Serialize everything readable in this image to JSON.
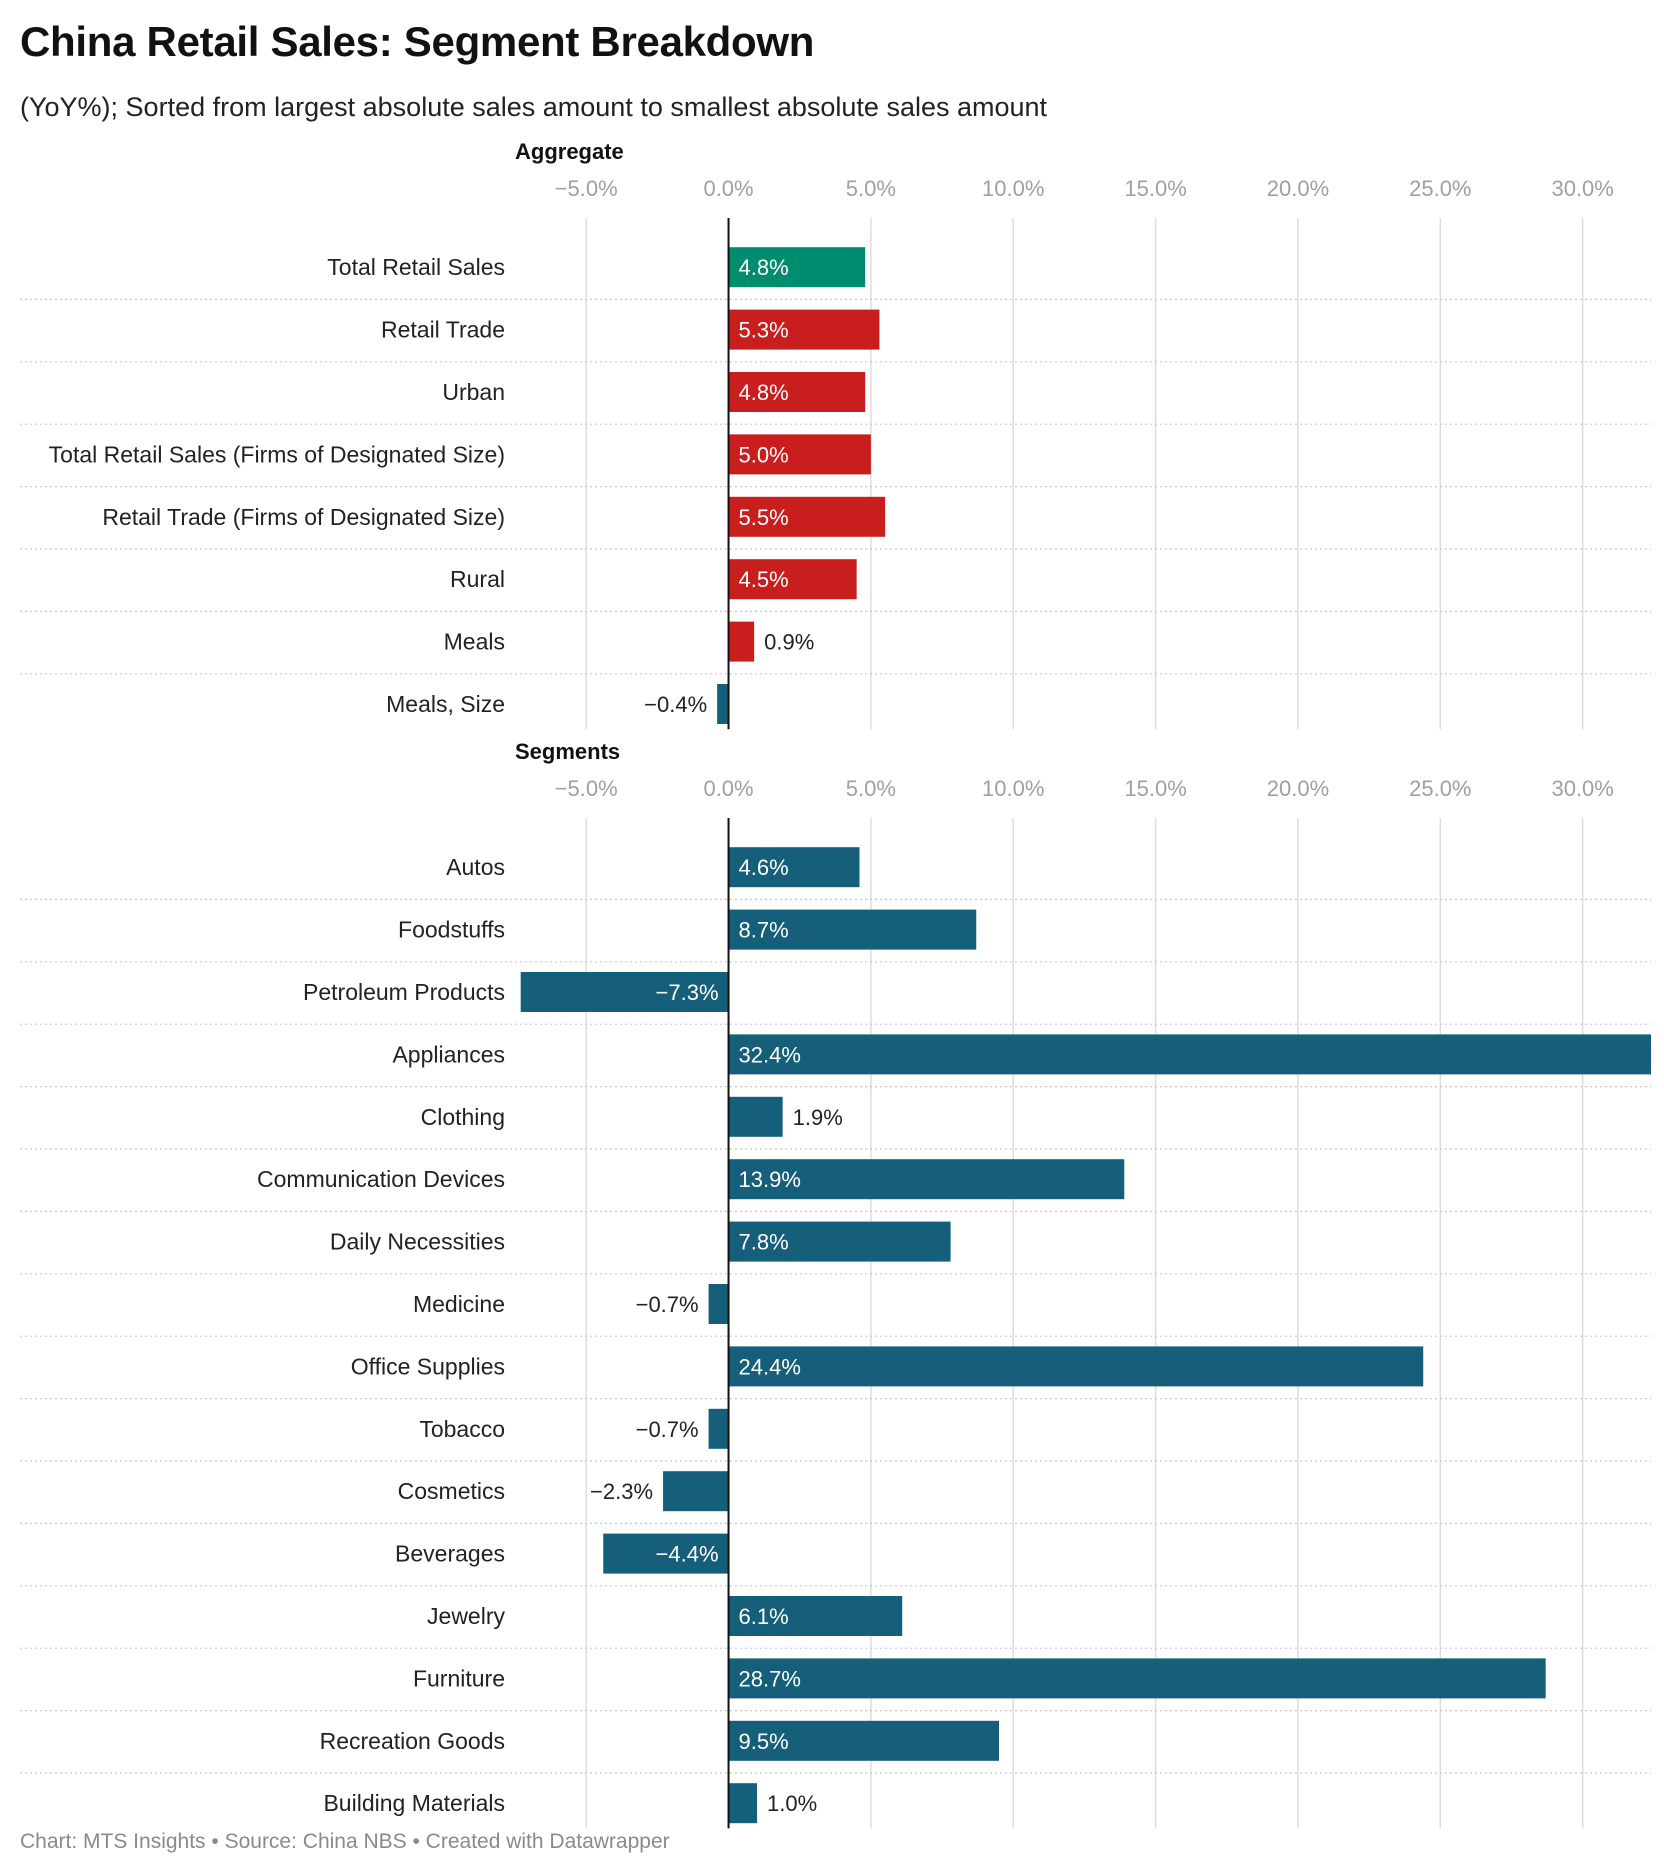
{
  "header": {
    "title": "China Retail Sales: Segment Breakdown",
    "subtitle": "(YoY%); Sorted from largest absolute sales amount to smallest absolute sales amount"
  },
  "footer": {
    "credit": "Chart: MTS Insights • Source: China NBS • Created with Datawrapper"
  },
  "colors": {
    "highlight": "#008c6f",
    "aggregate": "#c81e1e",
    "segment": "#155f7a",
    "grid": "#dddddd",
    "axis": "#111111"
  },
  "chart_data": [
    {
      "type": "bar",
      "orientation": "horizontal",
      "title": "Aggregate",
      "xlim": [
        -7.5,
        32.4
      ],
      "ticks": [
        -5.0,
        0.0,
        5.0,
        10.0,
        15.0,
        20.0,
        25.0,
        30.0
      ],
      "tick_labels": [
        "−5.0%",
        "0.0%",
        "5.0%",
        "10.0%",
        "15.0%",
        "20.0%",
        "25.0%",
        "30.0%"
      ],
      "categories": [
        "Total Retail Sales",
        "Retail Trade",
        "Urban",
        "Total Retail Sales (Firms of Designated Size)",
        "Retail Trade (Firms of Designated Size)",
        "Rural",
        "Meals",
        "Meals, Size"
      ],
      "values": [
        4.8,
        5.3,
        4.8,
        5.0,
        5.5,
        4.5,
        0.9,
        -0.4
      ],
      "value_labels": [
        "4.8%",
        "5.3%",
        "4.8%",
        "5.0%",
        "5.5%",
        "4.5%",
        "0.9%",
        "−0.4%"
      ],
      "bar_colors": [
        "#008c6f",
        "#c81e1e",
        "#c81e1e",
        "#c81e1e",
        "#c81e1e",
        "#c81e1e",
        "#c81e1e",
        "#155f7a"
      ]
    },
    {
      "type": "bar",
      "orientation": "horizontal",
      "title": "Segments",
      "xlim": [
        -7.5,
        32.4
      ],
      "ticks": [
        -5.0,
        0.0,
        5.0,
        10.0,
        15.0,
        20.0,
        25.0,
        30.0
      ],
      "tick_labels": [
        "−5.0%",
        "0.0%",
        "5.0%",
        "10.0%",
        "15.0%",
        "20.0%",
        "25.0%",
        "30.0%"
      ],
      "categories": [
        "Autos",
        "Foodstuffs",
        "Petroleum Products",
        "Appliances",
        "Clothing",
        "Communication Devices",
        "Daily Necessities",
        "Medicine",
        "Office Supplies",
        "Tobacco",
        "Cosmetics",
        "Beverages",
        "Jewelry",
        "Furniture",
        "Recreation Goods",
        "Building Materials"
      ],
      "values": [
        4.6,
        8.7,
        -7.3,
        32.4,
        1.9,
        13.9,
        7.8,
        -0.7,
        24.4,
        -0.7,
        -2.3,
        -4.4,
        6.1,
        28.7,
        9.5,
        1.0
      ],
      "value_labels": [
        "4.6%",
        "8.7%",
        "−7.3%",
        "32.4%",
        "1.9%",
        "13.9%",
        "7.8%",
        "−0.7%",
        "24.4%",
        "−0.7%",
        "−2.3%",
        "−4.4%",
        "6.1%",
        "28.7%",
        "9.5%",
        "1.0%"
      ],
      "bar_colors": [
        "#155f7a",
        "#155f7a",
        "#155f7a",
        "#155f7a",
        "#155f7a",
        "#155f7a",
        "#155f7a",
        "#155f7a",
        "#155f7a",
        "#155f7a",
        "#155f7a",
        "#155f7a",
        "#155f7a",
        "#155f7a",
        "#155f7a",
        "#155f7a"
      ]
    }
  ]
}
